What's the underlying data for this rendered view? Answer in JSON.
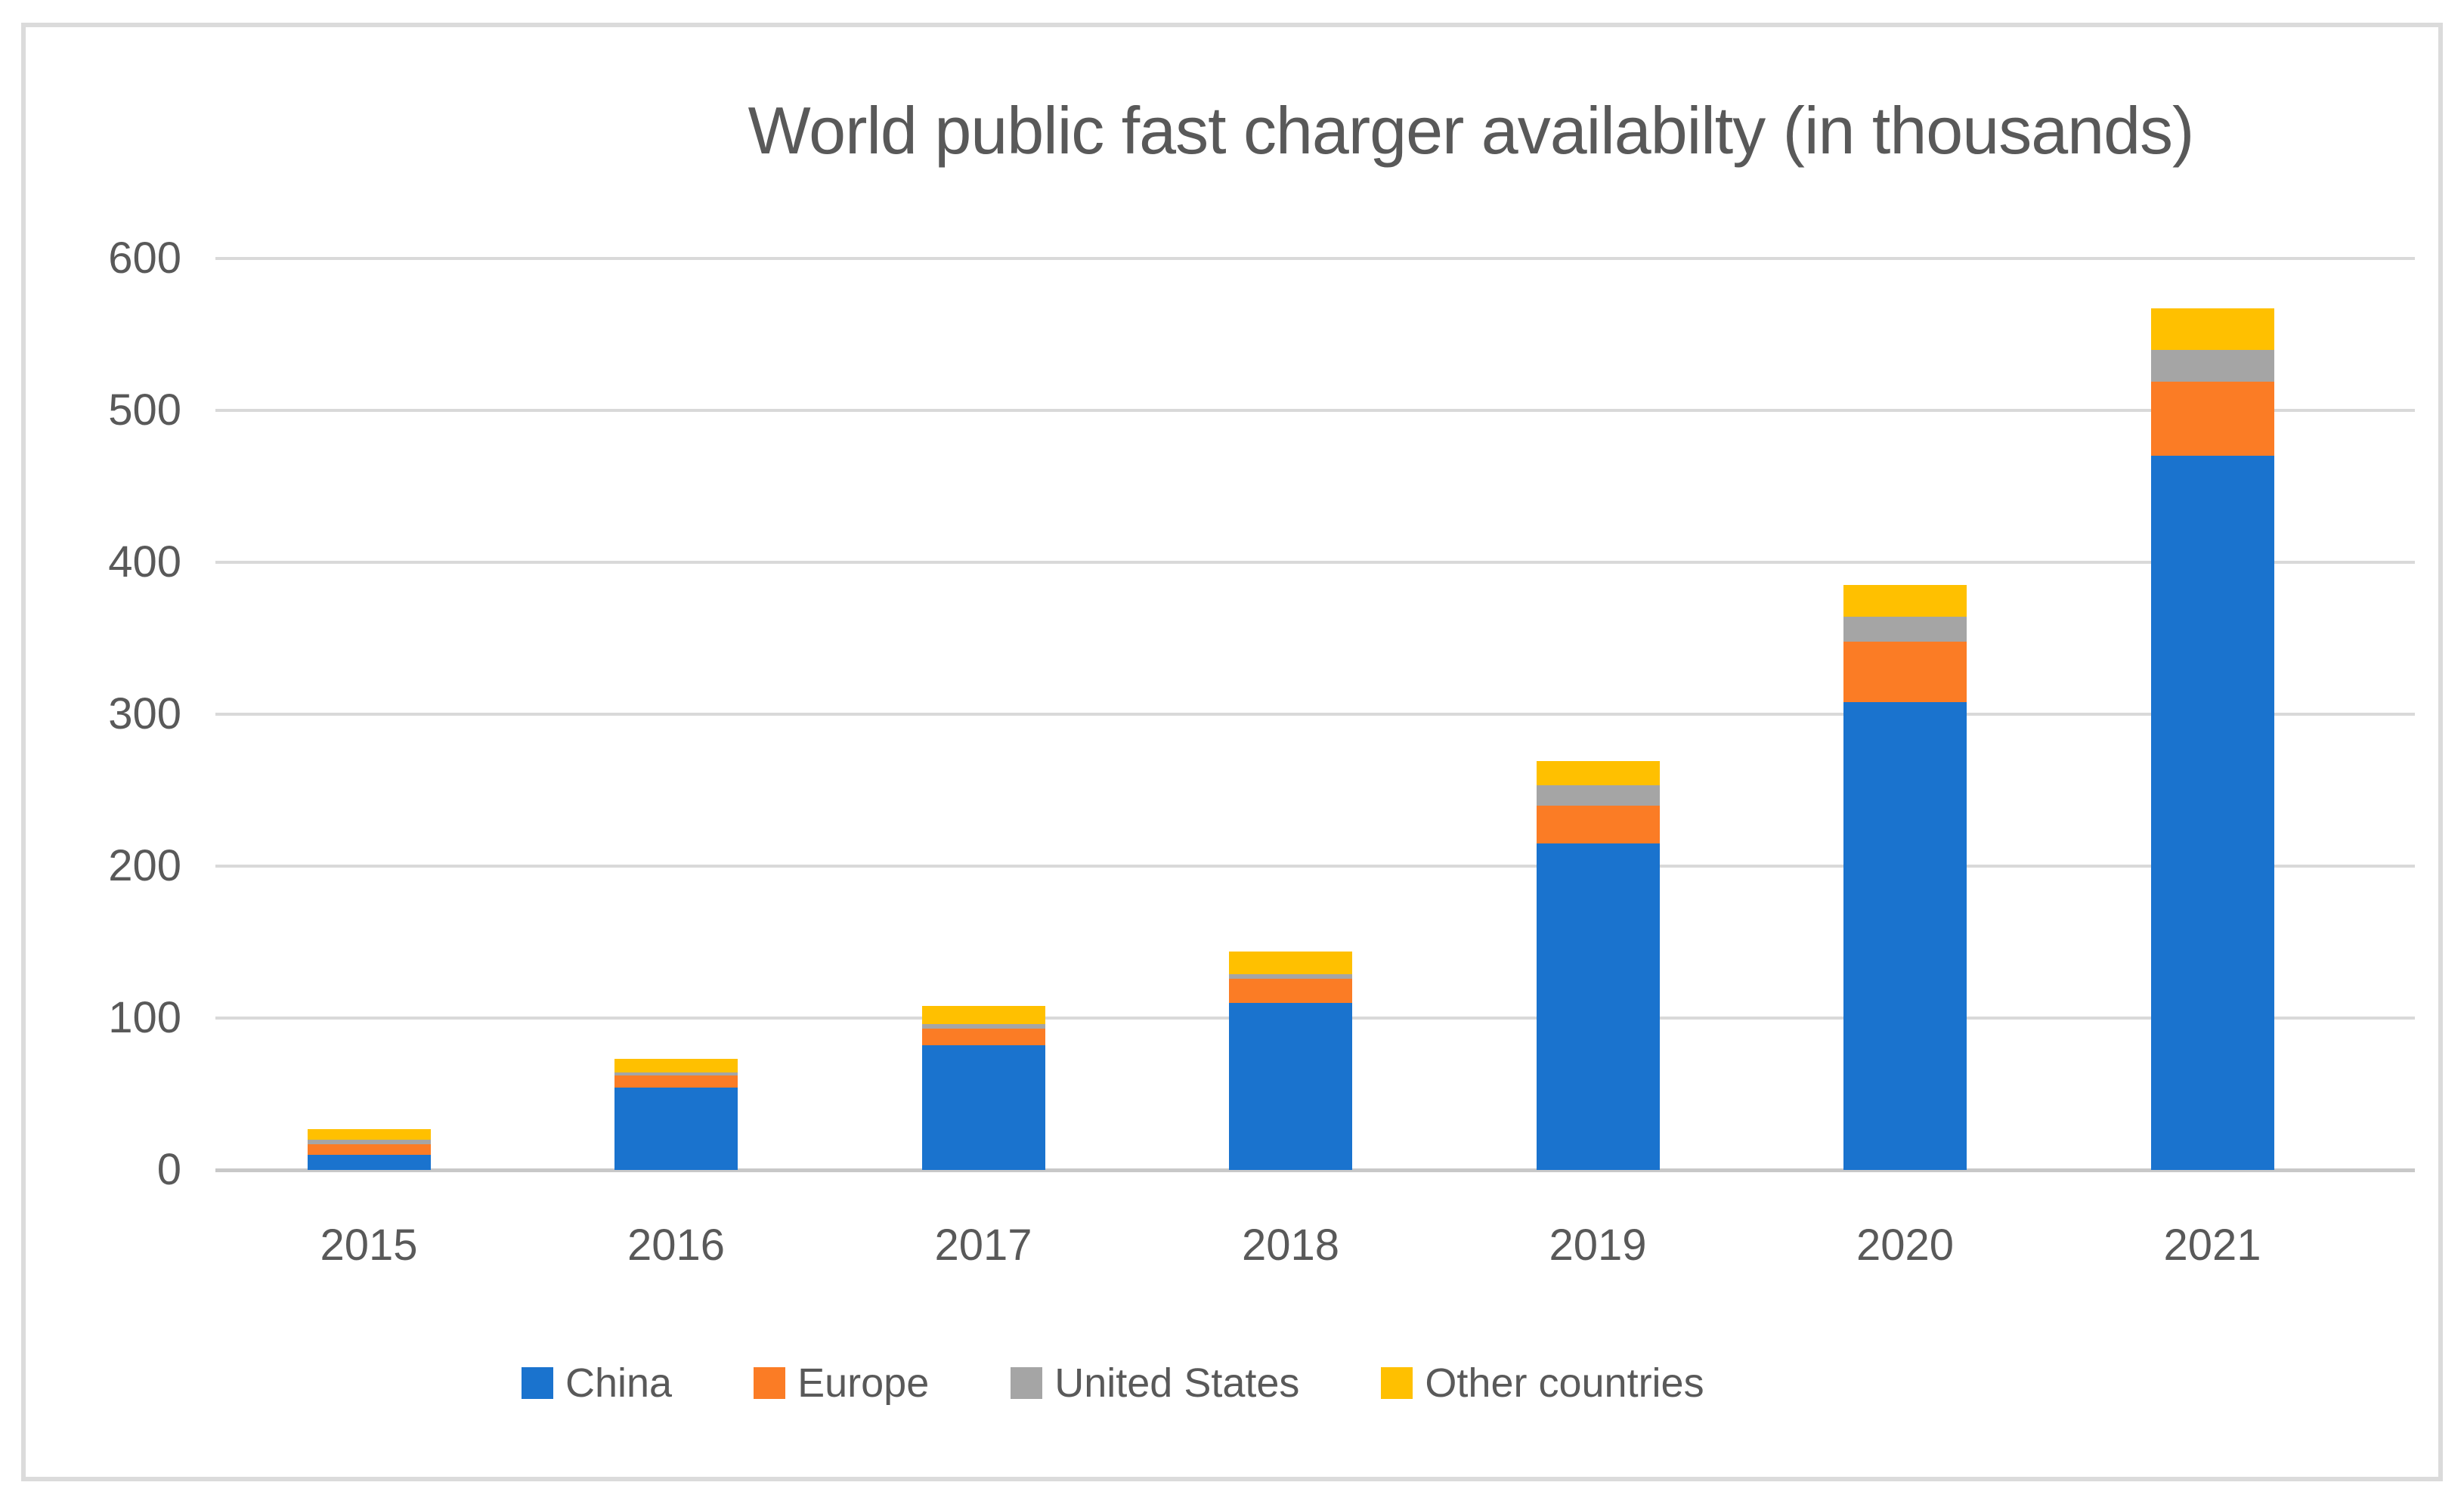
{
  "page": {
    "background": "#ffffff",
    "frame_border_color": "#dbdbdb"
  },
  "chart_data": {
    "type": "bar",
    "stacked": true,
    "title": "World public fast charger availabilty (in thousands)",
    "categories": [
      "2015",
      "2016",
      "2017",
      "2018",
      "2019",
      "2020",
      "2021"
    ],
    "series": [
      {
        "name": "China",
        "color": "#1A73CE",
        "values": [
          10,
          54,
          82,
          110,
          215,
          308,
          470
        ]
      },
      {
        "name": "Europe",
        "color": "#FB7C25",
        "values": [
          7,
          8,
          11,
          16,
          25,
          40,
          49
        ]
      },
      {
        "name": "United States",
        "color": "#A5A5A5",
        "values": [
          3,
          2,
          3,
          3,
          13,
          16,
          21
        ]
      },
      {
        "name": "Other countries",
        "color": "#FFC000",
        "values": [
          7,
          9,
          12,
          15,
          16,
          21,
          27
        ]
      }
    ],
    "totals": [
      27,
      73,
      108,
      144,
      269,
      385,
      567
    ],
    "ylim": [
      0,
      600
    ],
    "ytick_step": 100,
    "yticks": [
      "0",
      "100",
      "200",
      "300",
      "400",
      "500",
      "600"
    ],
    "xlabel": "",
    "ylabel": "",
    "grid": "horizontal",
    "legend_position": "bottom",
    "text_color": "#595959",
    "gridline_color": "#D9D9D9",
    "axis_line_color": "#C8C8C8"
  }
}
